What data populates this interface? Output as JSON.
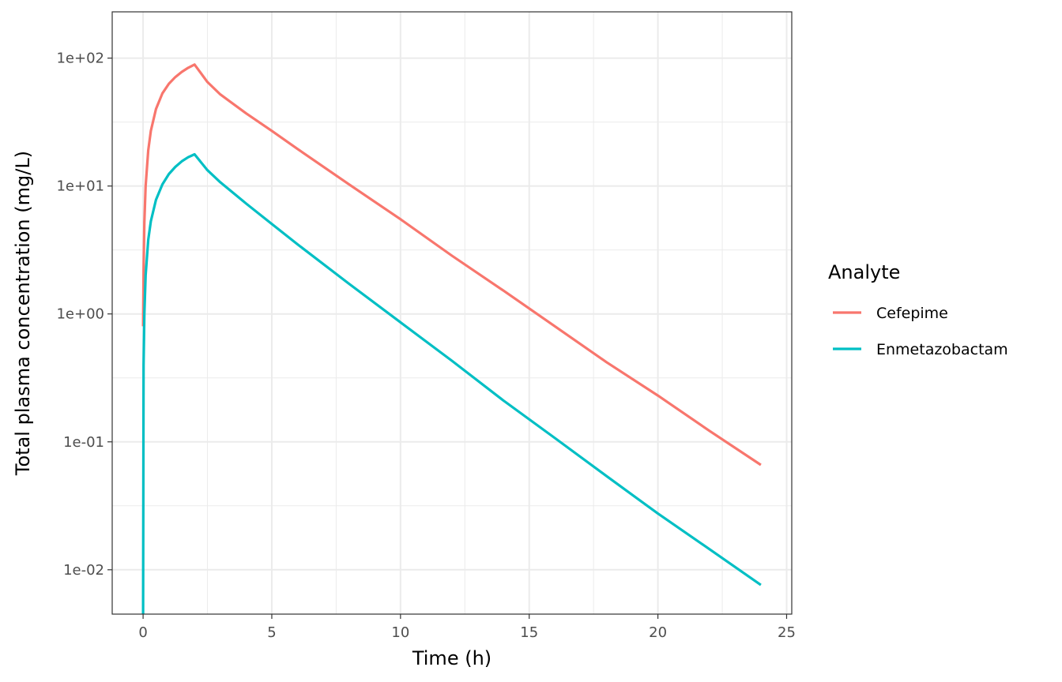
{
  "chart_data": {
    "type": "line",
    "title": "",
    "xlabel": "Time (h)",
    "ylabel": "Total plasma concentration (mg/L)",
    "xlim": [
      -1.2,
      25.2
    ],
    "ylim": [
      0.0045,
      230
    ],
    "y_scale": "log10",
    "grid": true,
    "x_ticks": [
      0,
      5,
      10,
      15,
      20,
      25
    ],
    "x_tick_labels": [
      "0",
      "5",
      "10",
      "15",
      "20",
      "25"
    ],
    "y_ticks": [
      0.01,
      0.1,
      1,
      10,
      100
    ],
    "y_tick_labels": [
      "1e-02",
      "1e-01",
      "1e+00",
      "1e+01",
      "1e+02"
    ],
    "legend": {
      "title": "Analyte",
      "position": "right"
    },
    "series": [
      {
        "name": "Cefepime",
        "color": "#F8766D",
        "x": [
          0,
          0.02,
          0.05,
          0.1,
          0.2,
          0.3,
          0.5,
          0.75,
          1,
          1.25,
          1.5,
          1.75,
          2,
          2.5,
          3,
          4,
          5,
          6,
          8,
          10,
          12,
          14,
          16,
          18,
          20,
          22,
          24
        ],
        "y": [
          0.8,
          2.2,
          5.2,
          10,
          19,
          27,
          40,
          53,
          63,
          71,
          78,
          84,
          89,
          65,
          52,
          37,
          27,
          19.5,
          10.3,
          5.5,
          2.85,
          1.52,
          0.8,
          0.42,
          0.23,
          0.122,
          0.066
        ]
      },
      {
        "name": "Enmetazobactam",
        "color": "#00BFC4",
        "x": [
          0,
          0.02,
          0.05,
          0.1,
          0.2,
          0.3,
          0.5,
          0.75,
          1,
          1.25,
          1.5,
          1.75,
          2,
          2.5,
          3,
          4,
          5,
          6,
          8,
          10,
          12,
          14,
          16,
          18,
          20,
          22,
          24
        ],
        "y": [
          0.0045,
          0.4,
          1,
          2,
          3.8,
          5.3,
          7.8,
          10.3,
          12.4,
          14.1,
          15.6,
          16.8,
          17.7,
          13.3,
          10.7,
          7.3,
          5.05,
          3.5,
          1.72,
          0.86,
          0.43,
          0.21,
          0.107,
          0.054,
          0.0275,
          0.0145,
          0.0076
        ]
      }
    ]
  }
}
